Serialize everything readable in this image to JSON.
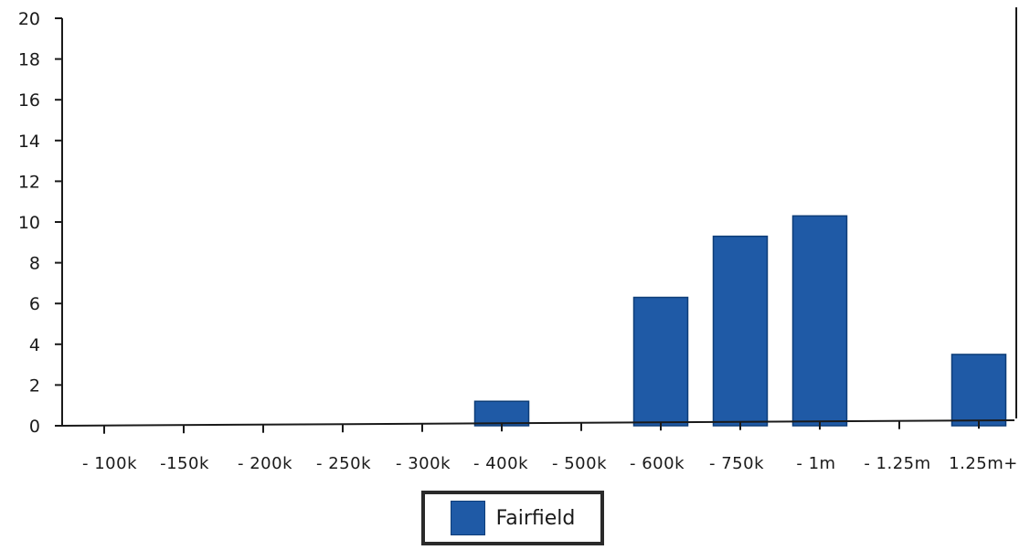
{
  "chart_data": {
    "type": "bar",
    "categories": [
      "100k",
      "150k",
      "200k",
      "250k",
      "300k",
      "400k",
      "500k",
      "600k",
      "750k",
      "1m",
      "1.25m",
      "1.25m+"
    ],
    "x_tick_labels": [
      "- 100k",
      "-150k",
      "- 200k",
      "- 250k",
      "- 300k",
      "- 400k",
      "- 500k",
      "- 600k",
      "- 750k",
      "- 1m",
      "- 1.25m",
      "1.25m+"
    ],
    "series": [
      {
        "name": "Fairfield",
        "values": [
          0,
          0,
          0,
          0,
          0,
          1.2,
          0,
          6.3,
          9.3,
          10.3,
          0,
          3.5
        ]
      }
    ],
    "y_ticks": [
      "0",
      "2",
      "4",
      "6",
      "8",
      "10",
      "12",
      "14",
      "16",
      "18",
      "20"
    ],
    "ylim": [
      0,
      20
    ],
    "grid": false,
    "legend_position": "bottom-center"
  },
  "colors": {
    "bar": "#1f5aa6",
    "bar_edge": "#0d3d78",
    "axis": "#1a1a1a"
  }
}
